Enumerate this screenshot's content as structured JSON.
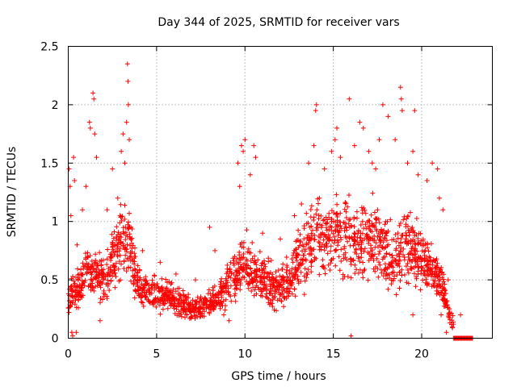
{
  "chart_data": {
    "type": "scatter",
    "title": "Day 344 of 2025, SRMTID for receiver vars",
    "xlabel": "GPS time / hours",
    "ylabel": "SRMTID / TECUs",
    "xlim": [
      0,
      24
    ],
    "ylim": [
      0,
      2.5
    ],
    "x_ticks": [
      0,
      5,
      10,
      15,
      20
    ],
    "x_tick_labels": [
      "0",
      "5",
      "10",
      "15",
      "20"
    ],
    "y_ticks": [
      0,
      0.5,
      1,
      1.5,
      2,
      2.5
    ],
    "y_tick_labels": [
      "0",
      "0.5",
      "1",
      "1.5",
      "2",
      "2.5"
    ],
    "grid": true,
    "marker": "+",
    "color": "#ff0000",
    "series": [
      {
        "name": "SRMTID",
        "profile_x": [
          0,
          0.3,
          0.6,
          1,
          1.4,
          2,
          2.6,
          3,
          3.4,
          3.8,
          4.2,
          5,
          6,
          6.5,
          7,
          7.5,
          8,
          8.5,
          9,
          9.6,
          10,
          10.5,
          11,
          11.5,
          12,
          12.5,
          13,
          13.5,
          14,
          15,
          16,
          16.5,
          17,
          17.5,
          18,
          18.5,
          19,
          19.5,
          20,
          20.5,
          21,
          21.3,
          21.6,
          21.8
        ],
        "profile_y": [
          0.3,
          0.45,
          0.4,
          0.6,
          0.55,
          0.5,
          0.7,
          0.85,
          0.8,
          0.55,
          0.4,
          0.38,
          0.33,
          0.3,
          0.25,
          0.25,
          0.3,
          0.35,
          0.45,
          0.55,
          0.65,
          0.55,
          0.5,
          0.45,
          0.45,
          0.5,
          0.65,
          0.75,
          0.85,
          0.9,
          0.85,
          0.8,
          0.9,
          0.85,
          0.7,
          0.7,
          0.8,
          0.75,
          0.7,
          0.6,
          0.5,
          0.35,
          0.2,
          0.1
        ],
        "flat_segment": {
          "x_start": 21.8,
          "x_end": 22.9,
          "y": 0.0
        },
        "points": [
          [
            0.05,
            1.45
          ],
          [
            0.1,
            1.3
          ],
          [
            0.15,
            1.05
          ],
          [
            0.2,
            0.05
          ],
          [
            0.3,
            1.55
          ],
          [
            0.35,
            1.35
          ],
          [
            0.5,
            0.8
          ],
          [
            0.8,
            1.1
          ],
          [
            1.0,
            1.3
          ],
          [
            1.2,
            1.85
          ],
          [
            1.25,
            1.8
          ],
          [
            1.4,
            2.1
          ],
          [
            1.45,
            2.05
          ],
          [
            1.5,
            1.75
          ],
          [
            1.6,
            1.55
          ],
          [
            2.2,
            1.1
          ],
          [
            2.5,
            1.45
          ],
          [
            2.8,
            1.2
          ],
          [
            3.0,
            1.6
          ],
          [
            3.1,
            1.75
          ],
          [
            3.2,
            1.5
          ],
          [
            3.3,
            1.85
          ],
          [
            3.35,
            2.35
          ],
          [
            3.38,
            2.2
          ],
          [
            3.4,
            2.0
          ],
          [
            3.45,
            1.7
          ],
          [
            4.2,
            0.75
          ],
          [
            5.2,
            0.65
          ],
          [
            6.1,
            0.55
          ],
          [
            7.2,
            0.5
          ],
          [
            8.0,
            0.95
          ],
          [
            8.3,
            0.75
          ],
          [
            9.6,
            1.5
          ],
          [
            9.7,
            1.3
          ],
          [
            9.8,
            1.65
          ],
          [
            9.9,
            1.6
          ],
          [
            10.0,
            1.7
          ],
          [
            10.3,
            1.4
          ],
          [
            10.5,
            1.65
          ],
          [
            10.6,
            1.55
          ],
          [
            11.0,
            0.9
          ],
          [
            12.0,
            0.85
          ],
          [
            12.8,
            1.05
          ],
          [
            13.2,
            1.15
          ],
          [
            13.6,
            1.5
          ],
          [
            13.9,
            1.65
          ],
          [
            14.0,
            1.95
          ],
          [
            14.05,
            2.0
          ],
          [
            14.5,
            1.45
          ],
          [
            14.9,
            1.6
          ],
          [
            15.1,
            1.7
          ],
          [
            15.2,
            1.8
          ],
          [
            15.4,
            1.55
          ],
          [
            15.9,
            2.05
          ],
          [
            16.2,
            1.65
          ],
          [
            16.5,
            1.85
          ],
          [
            16.7,
            1.8
          ],
          [
            17.0,
            1.6
          ],
          [
            17.2,
            1.5
          ],
          [
            17.4,
            1.45
          ],
          [
            17.6,
            1.7
          ],
          [
            17.8,
            2.0
          ],
          [
            18.1,
            1.9
          ],
          [
            18.5,
            1.7
          ],
          [
            18.8,
            2.15
          ],
          [
            18.85,
            2.05
          ],
          [
            18.9,
            1.95
          ],
          [
            19.2,
            1.5
          ],
          [
            19.5,
            1.6
          ],
          [
            19.6,
            1.95
          ],
          [
            19.8,
            1.4
          ],
          [
            20.3,
            1.35
          ],
          [
            20.6,
            1.5
          ],
          [
            20.9,
            1.45
          ],
          [
            21.0,
            1.2
          ],
          [
            21.2,
            1.1
          ],
          [
            21.5,
            0.5
          ],
          [
            21.8,
            0.12
          ],
          [
            22.2,
            0.2
          ],
          [
            16.0,
            0.02
          ],
          [
            1.8,
            0.15
          ],
          [
            0.25,
            0.02
          ],
          [
            0.45,
            0.05
          ],
          [
            8.8,
            0.2
          ],
          [
            9.1,
            0.15
          ],
          [
            19.5,
            0.2
          ],
          [
            21.1,
            0.2
          ],
          [
            21.4,
            0.05
          ]
        ]
      }
    ]
  }
}
